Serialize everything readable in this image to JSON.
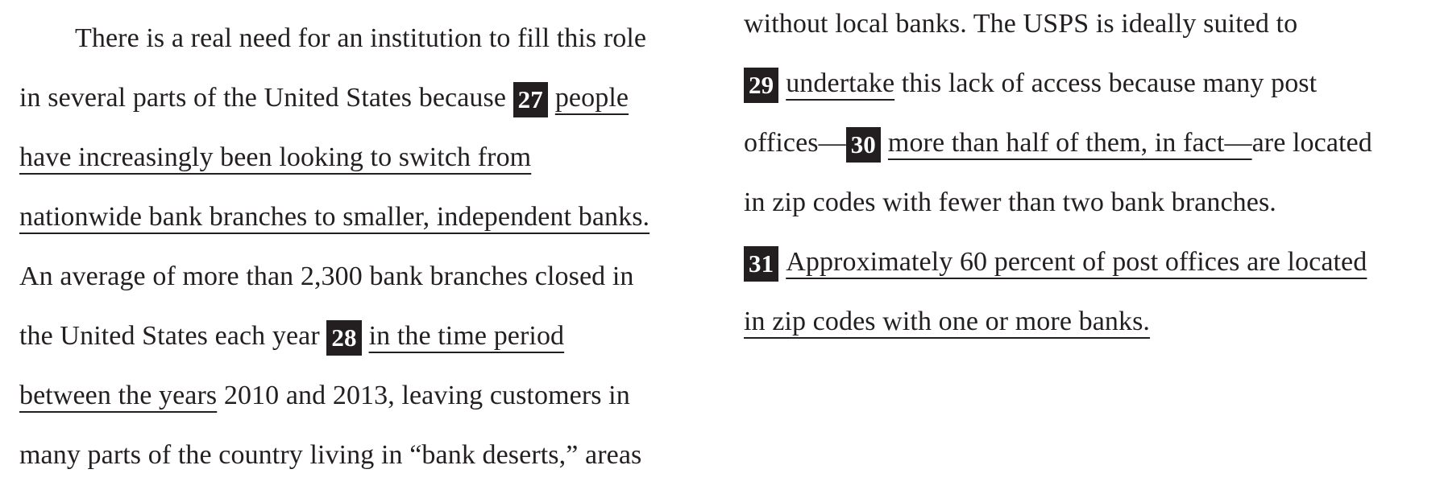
{
  "left_column": {
    "l1": "There is a real need for an institution to fill this role",
    "l2_a": "in several parts of the United States because",
    "q27": "27",
    "l2_u": "people",
    "l3_u": "have increasingly been looking to switch from",
    "l4_u": "nationwide bank branches to smaller, independent banks.",
    "l5": "An average of more than 2,300 bank branches closed in",
    "l6_a": "the United States each year",
    "q28": "28",
    "l6_u": "in the time period",
    "l7_u": "between the years",
    "l7_b": " 2010 and 2013, leaving customers in",
    "l8": "many parts of the country living in “bank deserts,” areas"
  },
  "right_column": {
    "r1": "without local banks. The USPS is ideally suited to",
    "q29": "29",
    "r2_u": "undertake",
    "r2_b": " this lack of access because many post",
    "r3_a": "offices—",
    "q30": "30",
    "r3_u": "more than half of them, in fact—",
    "r3_b": "are located",
    "r4": "in zip codes with fewer than two bank branches.",
    "q31": "31",
    "r5_u": "Approximately 60 percent of post offices are located",
    "r6_u": "in zip codes with one or more banks."
  }
}
